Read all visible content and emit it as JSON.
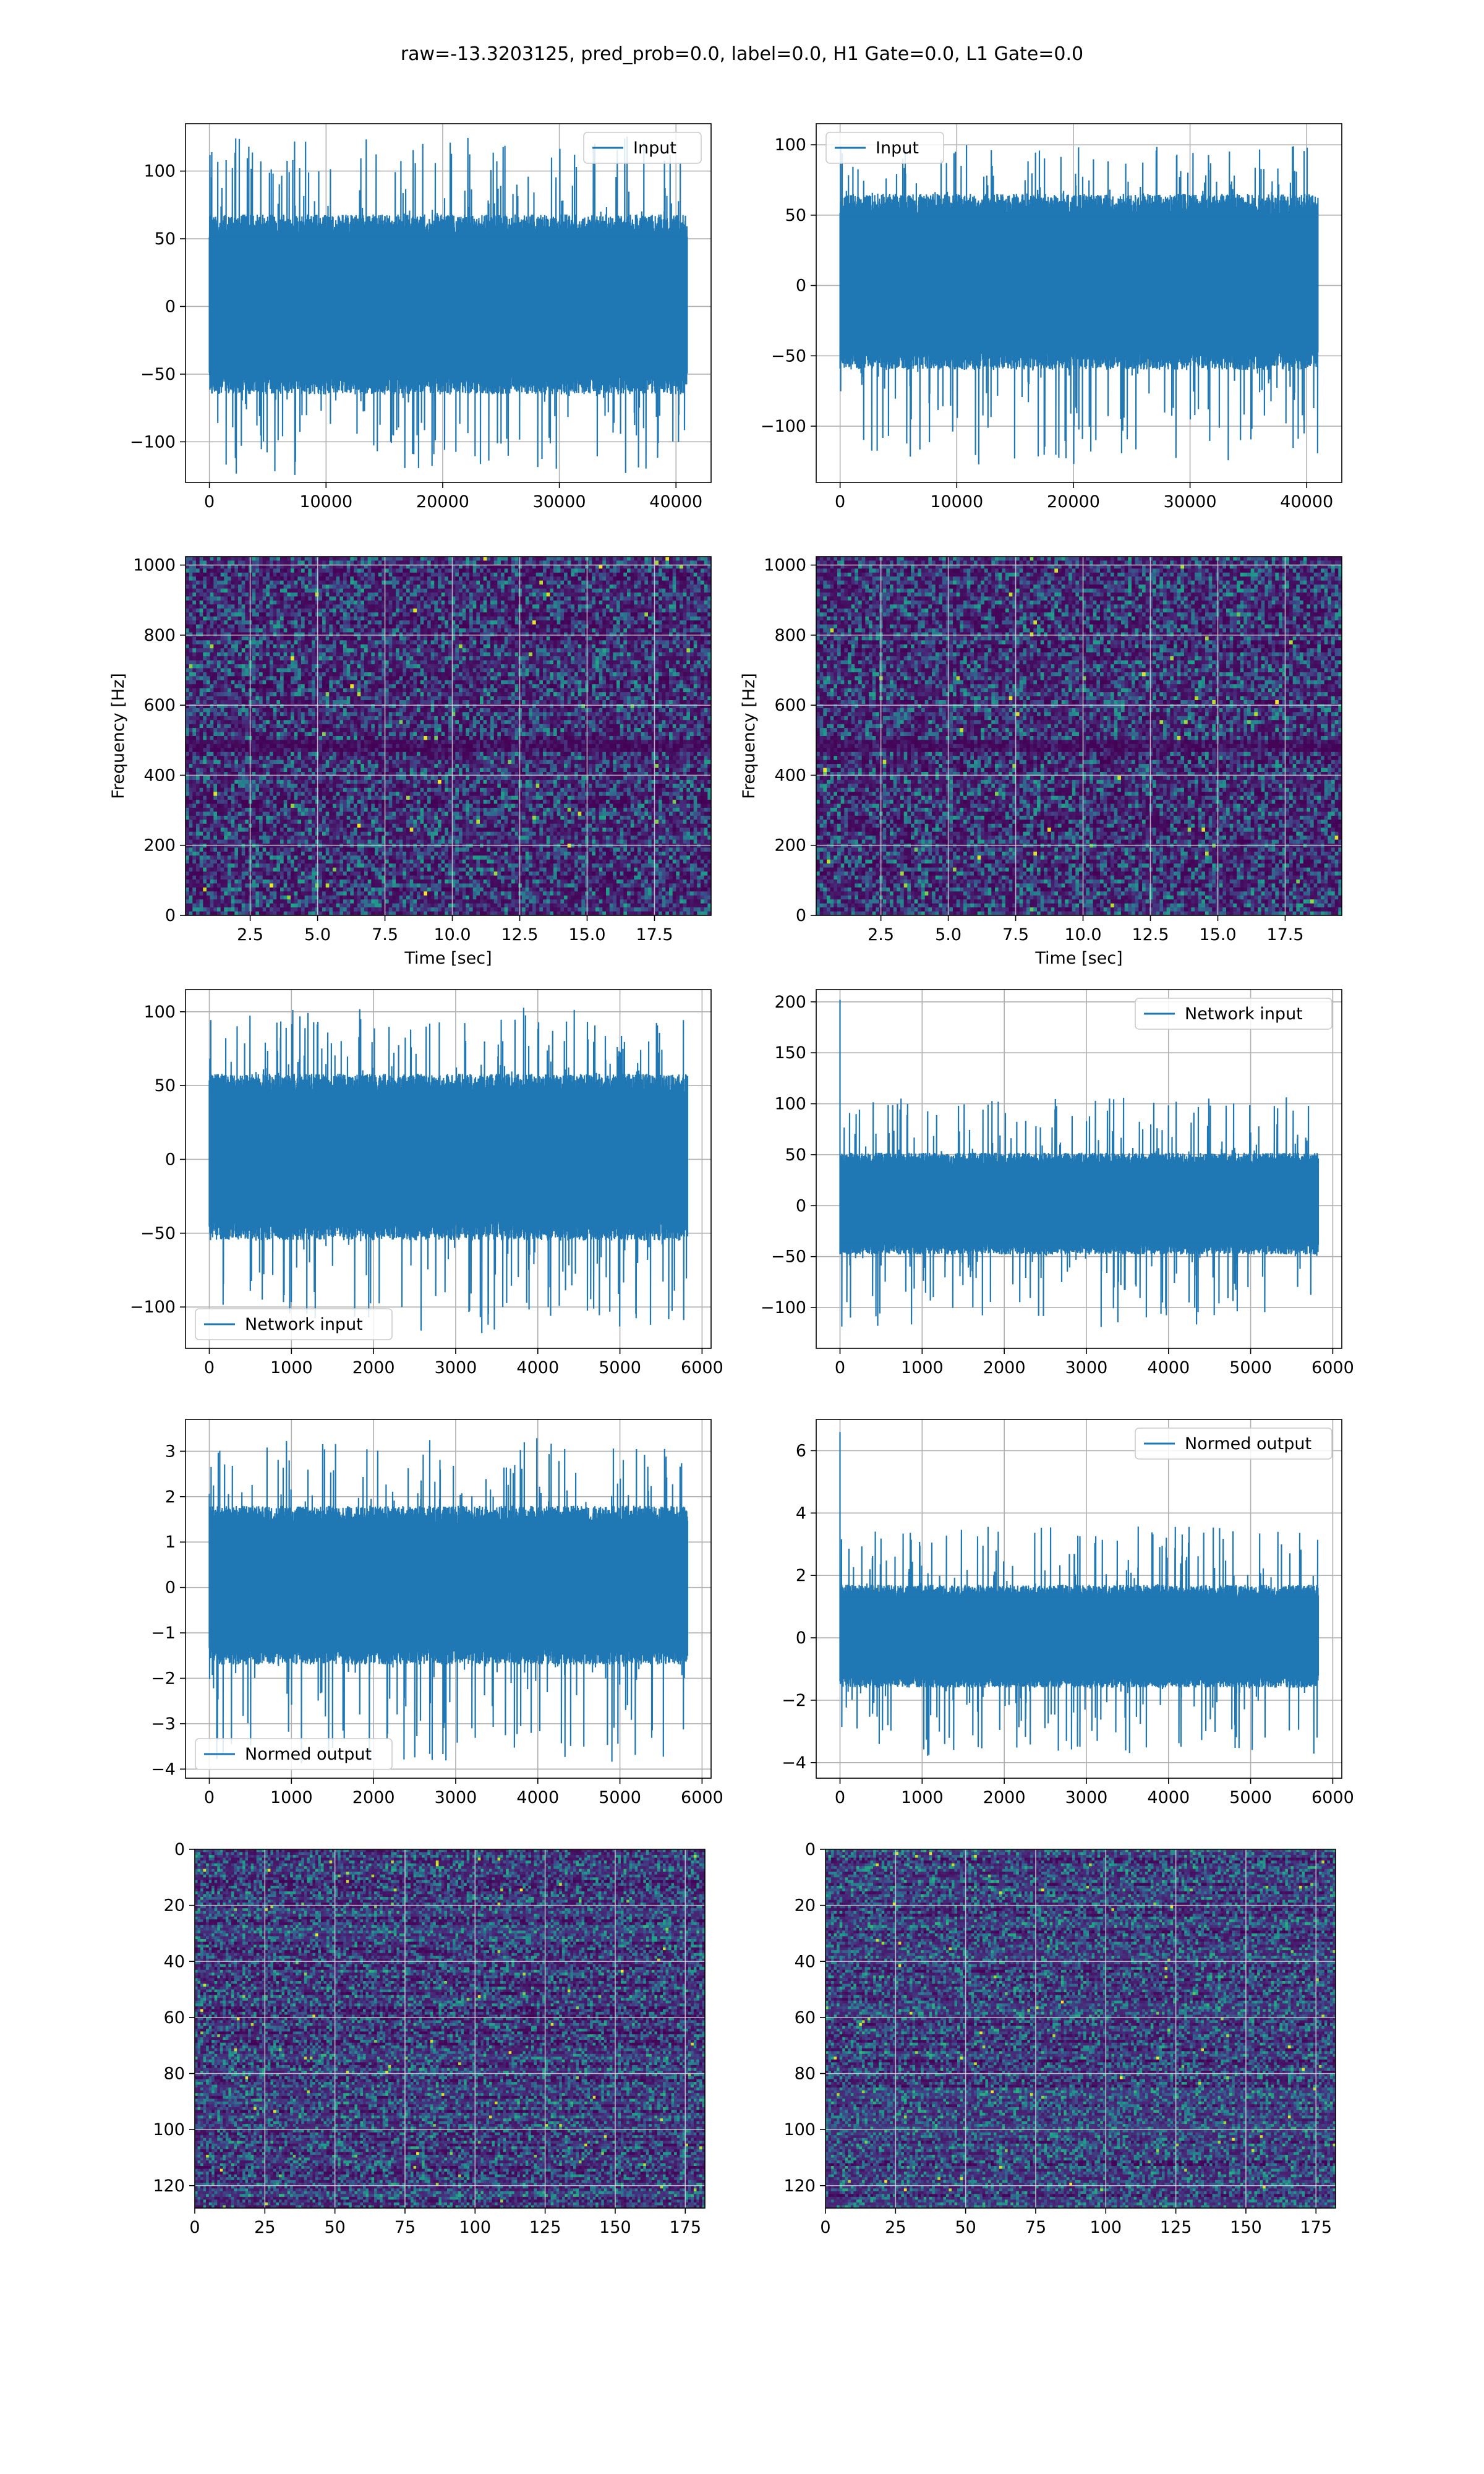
{
  "title": "raw=-13.3203125, pred_prob=0.0, label=0.0, H1 Gate=0.0, L1 Gate=0.0",
  "colors": {
    "line": "#1f77b4",
    "grid": "#b0b0b0",
    "viridis_low": "#440154",
    "viridis_high": "#fde725"
  },
  "chart_data": [
    {
      "id": "input-h1",
      "type": "line",
      "legend": "Input",
      "legend_loc": "upper right",
      "xlim": [
        -2048,
        43008
      ],
      "ylim": [
        -130,
        135
      ],
      "xticks": [
        0,
        10000,
        20000,
        30000,
        40000
      ],
      "xticklabels": [
        "0",
        "10000",
        "20000",
        "30000",
        "40000"
      ],
      "yticks": [
        -100,
        -50,
        0,
        50,
        100
      ],
      "yticklabels": [
        "−100",
        "−50",
        "0",
        "50",
        "100"
      ],
      "xlabel": "",
      "ylabel": "",
      "grid": true,
      "series": {
        "x_range": [
          0,
          40960
        ],
        "band": [
          -65,
          68
        ],
        "extreme": [
          -125,
          127
        ]
      }
    },
    {
      "id": "input-l1",
      "type": "line",
      "legend": "Input",
      "legend_loc": "upper left",
      "xlim": [
        -2048,
        43008
      ],
      "ylim": [
        -140,
        115
      ],
      "xticks": [
        0,
        10000,
        20000,
        30000,
        40000
      ],
      "xticklabels": [
        "0",
        "10000",
        "20000",
        "30000",
        "40000"
      ],
      "yticks": [
        -100,
        -50,
        0,
        50,
        100
      ],
      "yticklabels": [
        "−100",
        "−50",
        "0",
        "50",
        "100"
      ],
      "xlabel": "",
      "ylabel": "",
      "grid": true,
      "series": {
        "x_range": [
          0,
          40960
        ],
        "band": [
          -60,
          65
        ],
        "extreme": [
          -128,
          100
        ]
      }
    },
    {
      "id": "spectrogram-h1",
      "type": "heatmap",
      "xlim": [
        0.1,
        19.6
      ],
      "ylim": [
        0,
        1024
      ],
      "xticks": [
        2.5,
        5.0,
        7.5,
        10.0,
        12.5,
        15.0,
        17.5
      ],
      "xticklabels": [
        "2.5",
        "5.0",
        "7.5",
        "10.0",
        "12.5",
        "15.0",
        "17.5"
      ],
      "yticks": [
        0,
        200,
        400,
        600,
        800,
        1000
      ],
      "yticklabels": [
        "0",
        "200",
        "400",
        "600",
        "800",
        "1000"
      ],
      "xlabel": "Time [sec]",
      "ylabel": "Frequency [Hz]",
      "grid": true,
      "colormap": "viridis"
    },
    {
      "id": "spectrogram-l1",
      "type": "heatmap",
      "xlim": [
        0.1,
        19.6
      ],
      "ylim": [
        0,
        1024
      ],
      "xticks": [
        2.5,
        5.0,
        7.5,
        10.0,
        12.5,
        15.0,
        17.5
      ],
      "xticklabels": [
        "2.5",
        "5.0",
        "7.5",
        "10.0",
        "12.5",
        "15.0",
        "17.5"
      ],
      "yticks": [
        0,
        200,
        400,
        600,
        800,
        1000
      ],
      "yticklabels": [
        "0",
        "200",
        "400",
        "600",
        "800",
        "1000"
      ],
      "xlabel": "Time [sec]",
      "ylabel": "Frequency [Hz]",
      "grid": true,
      "colormap": "viridis"
    },
    {
      "id": "network-input-h1",
      "type": "line",
      "legend": "Network input",
      "legend_loc": "lower left",
      "xlim": [
        -290,
        6110
      ],
      "ylim": [
        -128,
        115
      ],
      "xticks": [
        0,
        1000,
        2000,
        3000,
        4000,
        5000,
        6000
      ],
      "xticklabels": [
        "0",
        "1000",
        "2000",
        "3000",
        "4000",
        "5000",
        "6000"
      ],
      "yticks": [
        -100,
        -50,
        0,
        50,
        100
      ],
      "yticklabels": [
        "−100",
        "−50",
        "0",
        "50",
        "100"
      ],
      "xlabel": "",
      "ylabel": "",
      "grid": true,
      "series": {
        "x_range": [
          0,
          5824
        ],
        "band": [
          -55,
          58
        ],
        "extreme": [
          -118,
          104
        ]
      }
    },
    {
      "id": "network-input-l1",
      "type": "line",
      "legend": "Network input",
      "legend_loc": "upper right",
      "xlim": [
        -290,
        6110
      ],
      "ylim": [
        -140,
        212
      ],
      "xticks": [
        0,
        1000,
        2000,
        3000,
        4000,
        5000,
        6000
      ],
      "xticklabels": [
        "0",
        "1000",
        "2000",
        "3000",
        "4000",
        "5000",
        "6000"
      ],
      "yticks": [
        -100,
        -50,
        0,
        50,
        100,
        150,
        200
      ],
      "yticklabels": [
        "−100",
        "−50",
        "0",
        "50",
        "100",
        "150",
        "200"
      ],
      "xlabel": "",
      "ylabel": "",
      "grid": true,
      "series": {
        "x_range": [
          0,
          5824
        ],
        "band": [
          -48,
          52
        ],
        "extreme": [
          -122,
          107
        ],
        "spike_at_start": 202
      }
    },
    {
      "id": "normed-output-h1",
      "type": "line",
      "legend": "Normed output",
      "legend_loc": "lower left",
      "xlim": [
        -290,
        6110
      ],
      "ylim": [
        -4.2,
        3.7
      ],
      "xticks": [
        0,
        1000,
        2000,
        3000,
        4000,
        5000,
        6000
      ],
      "xticklabels": [
        "0",
        "1000",
        "2000",
        "3000",
        "4000",
        "5000",
        "6000"
      ],
      "yticks": [
        -4,
        -3,
        -2,
        -1,
        0,
        1,
        2,
        3
      ],
      "yticklabels": [
        "−4",
        "−3",
        "−2",
        "−1",
        "0",
        "1",
        "2",
        "3"
      ],
      "xlabel": "",
      "ylabel": "",
      "grid": true,
      "series": {
        "x_range": [
          0,
          5824
        ],
        "band": [
          -1.7,
          1.8
        ],
        "extreme": [
          -3.9,
          3.3
        ]
      }
    },
    {
      "id": "normed-output-l1",
      "type": "line",
      "legend": "Normed output",
      "legend_loc": "upper right",
      "xlim": [
        -290,
        6110
      ],
      "ylim": [
        -4.5,
        7.0
      ],
      "xticks": [
        0,
        1000,
        2000,
        3000,
        4000,
        5000,
        6000
      ],
      "xticklabels": [
        "0",
        "1000",
        "2000",
        "3000",
        "4000",
        "5000",
        "6000"
      ],
      "yticks": [
        -4,
        -2,
        0,
        2,
        4,
        6
      ],
      "yticklabels": [
        "−4",
        "−2",
        "0",
        "2",
        "4",
        "6"
      ],
      "xlabel": "",
      "ylabel": "",
      "grid": true,
      "series": {
        "x_range": [
          0,
          5824
        ],
        "band": [
          -1.6,
          1.7
        ],
        "extreme": [
          -3.8,
          3.6
        ],
        "spike_at_start": 6.6
      }
    },
    {
      "id": "network-image-h1",
      "type": "heatmap",
      "xlim": [
        0,
        182
      ],
      "ylim": [
        128,
        0
      ],
      "xticks": [
        0,
        25,
        50,
        75,
        100,
        125,
        150,
        175
      ],
      "xticklabels": [
        "0",
        "25",
        "50",
        "75",
        "100",
        "125",
        "150",
        "175"
      ],
      "yticks": [
        0,
        20,
        40,
        60,
        80,
        100,
        120
      ],
      "yticklabels": [
        "0",
        "20",
        "40",
        "60",
        "80",
        "100",
        "120"
      ],
      "xlabel": "",
      "ylabel": "",
      "grid": true,
      "colormap": "viridis"
    },
    {
      "id": "network-image-l1",
      "type": "heatmap",
      "xlim": [
        0,
        182
      ],
      "ylim": [
        128,
        0
      ],
      "xticks": [
        0,
        25,
        50,
        75,
        100,
        125,
        150,
        175
      ],
      "xticklabels": [
        "0",
        "25",
        "50",
        "75",
        "100",
        "125",
        "150",
        "175"
      ],
      "yticks": [
        0,
        20,
        40,
        60,
        80,
        100,
        120
      ],
      "yticklabels": [
        "0",
        "20",
        "40",
        "60",
        "80",
        "100",
        "120"
      ],
      "xlabel": "",
      "ylabel": "",
      "grid": true,
      "colormap": "viridis"
    }
  ]
}
